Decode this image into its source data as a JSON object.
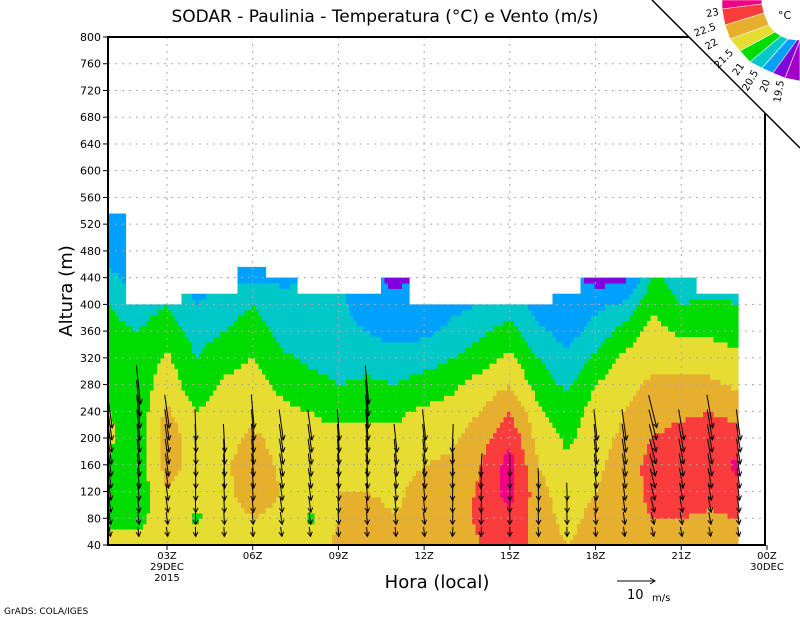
{
  "chart_data": {
    "type": "heatmap",
    "title": "SODAR - Paulinia - Temperatura (°C) e Vento (m/s)",
    "xlabel": "Hora (local)",
    "ylabel": "Altura (m)",
    "footer": "GrADS: COLA/IGES",
    "xlim_hours": [
      0.94,
      23.9
    ],
    "ylim": [
      40,
      800
    ],
    "y_ticks": [
      40,
      80,
      120,
      160,
      200,
      240,
      280,
      320,
      360,
      400,
      440,
      480,
      520,
      560,
      600,
      640,
      680,
      720,
      760,
      800
    ],
    "x_ticks": [
      {
        "hour": 3,
        "lines": [
          "03Z",
          "29DEC",
          "2015"
        ]
      },
      {
        "hour": 6,
        "lines": [
          "06Z"
        ]
      },
      {
        "hour": 9,
        "lines": [
          "09Z"
        ]
      },
      {
        "hour": 12,
        "lines": [
          "12Z"
        ]
      },
      {
        "hour": 15,
        "lines": [
          "15Z"
        ]
      },
      {
        "hour": 18,
        "lines": [
          "18Z"
        ]
      },
      {
        "hour": 21,
        "lines": [
          "21Z"
        ]
      },
      {
        "hour": 24,
        "lines": [
          "00Z",
          "30DEC"
        ]
      }
    ],
    "grid": true,
    "colorbar": {
      "unit": "°C",
      "levels": [
        "23",
        "22.5",
        "22",
        "21.5",
        "21",
        "20.5",
        "20",
        "19.5"
      ],
      "colors": [
        "#f00082",
        "#fa3c3c",
        "#e6af2d",
        "#e6dc32",
        "#00dc00",
        "#00c8c8",
        "#00a0ff",
        "#8200dc",
        "#a000c8"
      ]
    },
    "vector_reference": {
      "value": 10,
      "label": "10",
      "unit": "m/s"
    },
    "temperature": {
      "hours": [
        1,
        2,
        3,
        4,
        5,
        6,
        7,
        8,
        9,
        10,
        11,
        12,
        13,
        14,
        15,
        16,
        17,
        18,
        19,
        20,
        21,
        22,
        23
      ],
      "heights": [
        40,
        80,
        120,
        160,
        200,
        240,
        280,
        320,
        360,
        400,
        440,
        480,
        520
      ],
      "data_top": [
        540,
        400,
        400,
        420,
        420,
        460,
        440,
        420,
        420,
        420,
        440,
        400,
        400,
        400,
        400,
        400,
        420,
        440,
        440,
        440,
        440,
        420,
        420
      ],
      "values": [
        [
          21.7,
          21.4,
          21.3,
          21.4,
          21.6,
          21.5,
          21.3,
          21.2,
          21.1,
          21.0,
          20.6,
          20.3,
          20.3
        ],
        [
          21.8,
          21.3,
          21.2,
          21.2,
          21.2,
          21.2,
          21.2,
          21.1,
          21.0,
          20.8,
          20.3,
          20.3,
          20.3
        ],
        [
          22.0,
          21.9,
          22.0,
          22.2,
          22.3,
          22.1,
          21.8,
          21.6,
          21.3,
          21.0,
          20.6,
          20.6,
          20.6
        ],
        [
          21.8,
          21.4,
          21.7,
          21.8,
          21.7,
          21.5,
          21.2,
          21.0,
          20.8,
          20.5,
          20.3,
          20.3,
          20.3
        ],
        [
          21.9,
          21.8,
          21.9,
          21.9,
          21.8,
          21.7,
          21.6,
          21.3,
          21.0,
          20.7,
          20.4,
          20.4,
          20.4
        ],
        [
          22.0,
          22.0,
          22.2,
          22.3,
          22.1,
          21.9,
          21.7,
          21.5,
          21.3,
          21.0,
          20.4,
          20.4,
          20.4
        ],
        [
          21.9,
          21.9,
          22.0,
          21.9,
          21.8,
          21.6,
          21.4,
          21.1,
          20.8,
          20.7,
          20.4,
          20.4,
          20.4
        ],
        [
          21.8,
          21.4,
          21.8,
          21.8,
          21.7,
          21.5,
          21.2,
          20.9,
          20.7,
          20.6,
          20.5,
          20.5,
          20.5
        ],
        [
          22.1,
          22.0,
          22.0,
          21.9,
          21.7,
          21.3,
          21.0,
          20.8,
          20.6,
          20.6,
          20.5,
          20.5,
          20.5
        ],
        [
          22.2,
          22.2,
          22.0,
          21.8,
          21.6,
          21.4,
          21.1,
          20.8,
          20.5,
          20.3,
          20.2,
          20.2,
          20.2
        ],
        [
          22.0,
          22.0,
          21.9,
          21.8,
          21.6,
          21.4,
          21.0,
          20.7,
          20.3,
          20.2,
          19.8,
          19.8,
          19.8
        ],
        [
          22.2,
          22.3,
          22.2,
          22.0,
          21.8,
          21.6,
          21.2,
          20.8,
          20.4,
          20.3,
          20.2,
          20.2,
          20.2
        ],
        [
          22.3,
          22.3,
          22.2,
          22.1,
          21.9,
          21.7,
          21.4,
          21.0,
          20.6,
          20.4,
          20.3,
          20.3,
          20.3
        ],
        [
          22.5,
          22.6,
          22.6,
          22.5,
          22.3,
          22.0,
          21.7,
          21.3,
          20.9,
          20.5,
          20.4,
          20.4,
          20.4
        ],
        [
          22.7,
          22.9,
          23.2,
          23.2,
          22.9,
          22.5,
          22.0,
          21.6,
          21.2,
          20.8,
          20.6,
          20.6,
          20.6
        ],
        [
          22.4,
          22.3,
          22.2,
          22.0,
          21.8,
          21.6,
          21.3,
          21.0,
          20.6,
          20.3,
          20.2,
          20.2,
          20.2
        ],
        [
          22.0,
          21.8,
          21.7,
          21.6,
          21.4,
          21.2,
          20.9,
          20.6,
          20.3,
          20.2,
          20.2,
          20.2,
          20.2
        ],
        [
          22.2,
          22.2,
          22.0,
          21.9,
          21.8,
          21.7,
          21.5,
          21.1,
          20.7,
          20.4,
          19.8,
          19.8,
          19.8
        ],
        [
          22.3,
          22.4,
          22.3,
          22.2,
          22.1,
          22.0,
          21.8,
          21.6,
          21.2,
          20.6,
          19.8,
          19.8,
          19.8
        ],
        [
          22.4,
          22.5,
          22.6,
          22.7,
          22.5,
          22.3,
          22.1,
          21.9,
          21.7,
          21.4,
          21.1,
          21.1,
          21.1
        ],
        [
          22.4,
          22.5,
          22.7,
          22.8,
          22.7,
          22.4,
          22.1,
          21.8,
          21.4,
          21.0,
          20.8,
          20.8,
          20.8
        ],
        [
          22.3,
          22.4,
          22.7,
          22.8,
          22.8,
          22.5,
          22.1,
          21.8,
          21.4,
          21.1,
          20.7,
          20.7,
          20.7
        ],
        [
          22.3,
          22.5,
          22.9,
          23.1,
          22.8,
          22.3,
          21.9,
          21.6,
          21.3,
          21.0,
          20.8,
          20.8,
          20.8
        ]
      ]
    },
    "wind": {
      "lowest_height": 60,
      "step": 20,
      "speed_at_lowest": 2.5,
      "speed_gain_per_m": 0.035,
      "columns": [
        {
          "hour": 1,
          "top": 240,
          "dir_offset_deg": -8
        },
        {
          "hour": 2,
          "top": 280,
          "dir_offset_deg": -6
        },
        {
          "hour": 3,
          "top": 240,
          "dir_offset_deg": -8
        },
        {
          "hour": 4,
          "top": 220,
          "dir_offset_deg": -2
        },
        {
          "hour": 5,
          "top": 200,
          "dir_offset_deg": -3
        },
        {
          "hour": 6,
          "top": 250,
          "dir_offset_deg": -5
        },
        {
          "hour": 7,
          "top": 220,
          "dir_offset_deg": -8
        },
        {
          "hour": 8,
          "top": 220,
          "dir_offset_deg": -8
        },
        {
          "hour": 9,
          "top": 220,
          "dir_offset_deg": -4
        },
        {
          "hour": 10,
          "top": 280,
          "dir_offset_deg": -5
        },
        {
          "hour": 11,
          "top": 200,
          "dir_offset_deg": -6
        },
        {
          "hour": 12,
          "top": 220,
          "dir_offset_deg": -6
        },
        {
          "hour": 13,
          "top": 200,
          "dir_offset_deg": 2
        },
        {
          "hour": 14,
          "top": 160,
          "dir_offset_deg": 3
        },
        {
          "hour": 15,
          "top": 160,
          "dir_offset_deg": 0
        },
        {
          "hour": 16,
          "top": 140,
          "dir_offset_deg": -2
        },
        {
          "hour": 17,
          "top": 120,
          "dir_offset_deg": -2
        },
        {
          "hour": 18,
          "top": 220,
          "dir_offset_deg": -6
        },
        {
          "hour": 19,
          "top": 220,
          "dir_offset_deg": -8
        },
        {
          "hour": 20,
          "top": 240,
          "dir_offset_deg": -14
        },
        {
          "hour": 21,
          "top": 220,
          "dir_offset_deg": -10
        },
        {
          "hour": 22,
          "top": 240,
          "dir_offset_deg": -10
        },
        {
          "hour": 23,
          "top": 220,
          "dir_offset_deg": -8
        }
      ]
    }
  }
}
